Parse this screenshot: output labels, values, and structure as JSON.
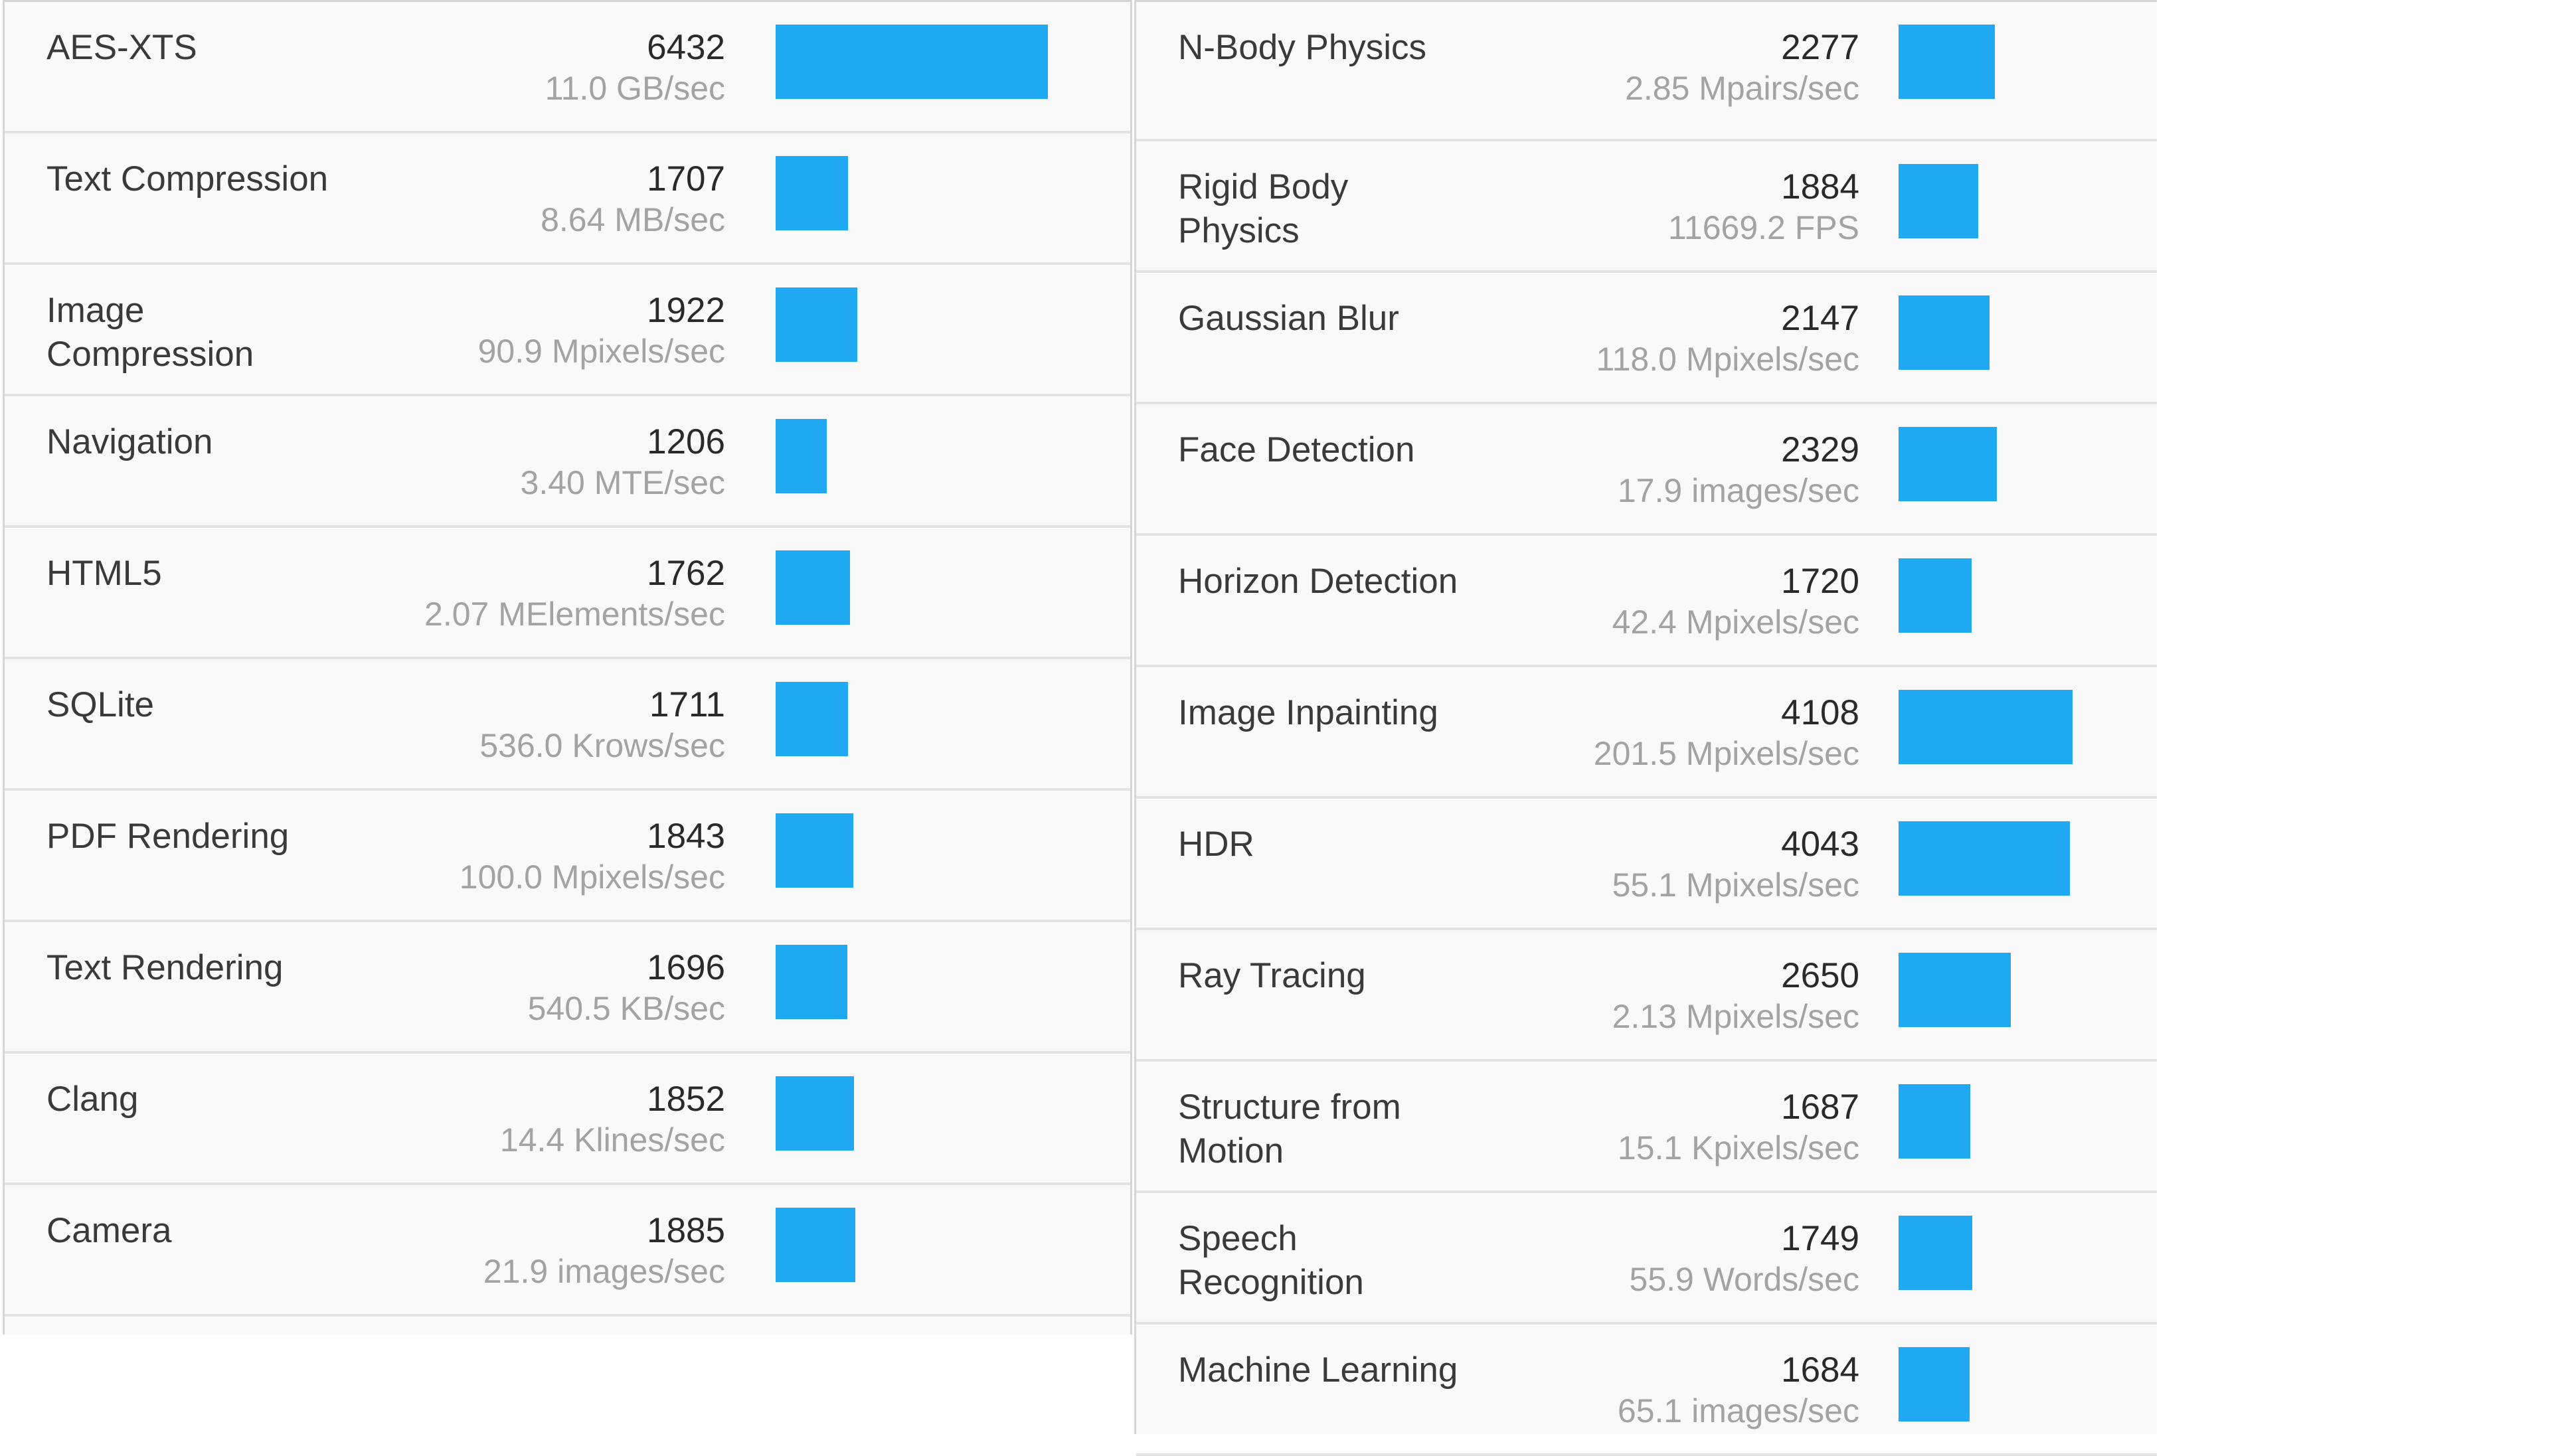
{
  "bar_color": "#1fa9f2",
  "max_score": 6432,
  "left": [
    {
      "name": "AES-XTS",
      "score": "6432",
      "unit": "11.0 GB/sec"
    },
    {
      "name": "Text Compression",
      "score": "1707",
      "unit": "8.64 MB/sec"
    },
    {
      "name": "Image\nCompression",
      "score": "1922",
      "unit": "90.9 Mpixels/sec"
    },
    {
      "name": "Navigation",
      "score": "1206",
      "unit": "3.40 MTE/sec"
    },
    {
      "name": "HTML5",
      "score": "1762",
      "unit": "2.07 MElements/sec"
    },
    {
      "name": "SQLite",
      "score": "1711",
      "unit": "536.0 Krows/sec"
    },
    {
      "name": "PDF Rendering",
      "score": "1843",
      "unit": "100.0 Mpixels/sec"
    },
    {
      "name": "Text Rendering",
      "score": "1696",
      "unit": "540.5 KB/sec"
    },
    {
      "name": "Clang",
      "score": "1852",
      "unit": "14.4 Klines/sec"
    },
    {
      "name": "Camera",
      "score": "1885",
      "unit": "21.9 images/sec"
    }
  ],
  "right": [
    {
      "name": "N-Body Physics",
      "score": "2277",
      "unit": "2.85 Mpairs/sec"
    },
    {
      "name": "Rigid Body\nPhysics",
      "score": "1884",
      "unit": "11669.2 FPS"
    },
    {
      "name": "Gaussian Blur",
      "score": "2147",
      "unit": "118.0 Mpixels/sec"
    },
    {
      "name": "Face Detection",
      "score": "2329",
      "unit": "17.9 images/sec"
    },
    {
      "name": "Horizon Detection",
      "score": "1720",
      "unit": "42.4 Mpixels/sec"
    },
    {
      "name": "Image Inpainting",
      "score": "4108",
      "unit": "201.5 Mpixels/sec"
    },
    {
      "name": "HDR",
      "score": "4043",
      "unit": "55.1 Mpixels/sec"
    },
    {
      "name": "Ray Tracing",
      "score": "2650",
      "unit": "2.13 Mpixels/sec"
    },
    {
      "name": "Structure from\nMotion",
      "score": "1687",
      "unit": "15.1 Kpixels/sec"
    },
    {
      "name": "Speech\nRecognition",
      "score": "1749",
      "unit": "55.9 Words/sec"
    },
    {
      "name": "Machine Learning",
      "score": "1684",
      "unit": "65.1 images/sec"
    }
  ]
}
